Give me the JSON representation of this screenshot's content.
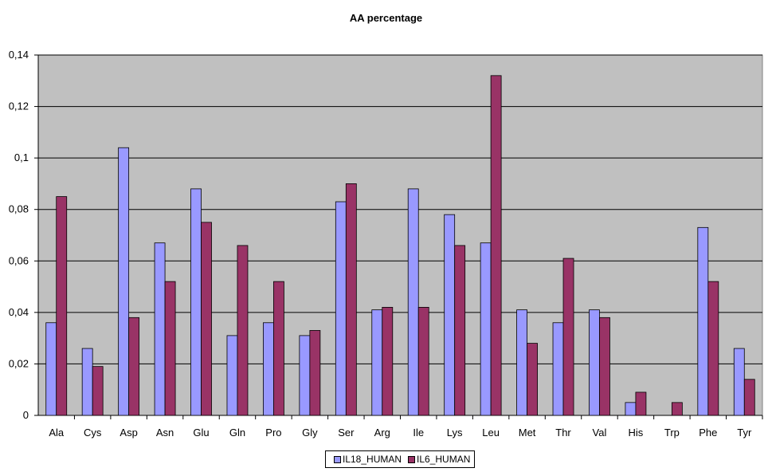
{
  "chart_data": {
    "type": "bar",
    "title": "AA percentage",
    "xlabel": "",
    "ylabel": "",
    "ylim": [
      0,
      0.14
    ],
    "yticks": [
      0,
      0.02,
      0.04,
      0.06,
      0.08,
      0.1,
      0.12,
      0.14
    ],
    "ytick_labels": [
      "0",
      "0,02",
      "0,04",
      "0,06",
      "0,08",
      "0,1",
      "0,12",
      "0,14"
    ],
    "grid": true,
    "legend_position": "bottom",
    "categories": [
      "Ala",
      "Cys",
      "Asp",
      "Asn",
      "Glu",
      "Gln",
      "Pro",
      "Gly",
      "Ser",
      "Arg",
      "Ile",
      "Lys",
      "Leu",
      "Met",
      "Thr",
      "Val",
      "His",
      "Trp",
      "Phe",
      "Tyr"
    ],
    "series": [
      {
        "name": "IL18_HUMAN",
        "color": "#9999ff",
        "values": [
          0.036,
          0.026,
          0.104,
          0.067,
          0.088,
          0.031,
          0.036,
          0.031,
          0.083,
          0.041,
          0.088,
          0.078,
          0.067,
          0.041,
          0.036,
          0.041,
          0.005,
          0.0,
          0.073,
          0.026
        ]
      },
      {
        "name": "IL6_HUMAN",
        "color": "#993366",
        "values": [
          0.085,
          0.019,
          0.038,
          0.052,
          0.075,
          0.066,
          0.052,
          0.033,
          0.09,
          0.042,
          0.042,
          0.066,
          0.132,
          0.028,
          0.061,
          0.038,
          0.009,
          0.005,
          0.052,
          0.014
        ]
      }
    ]
  },
  "colors": {
    "plot_background": "#c0c0c0",
    "gridline": "#000000"
  }
}
